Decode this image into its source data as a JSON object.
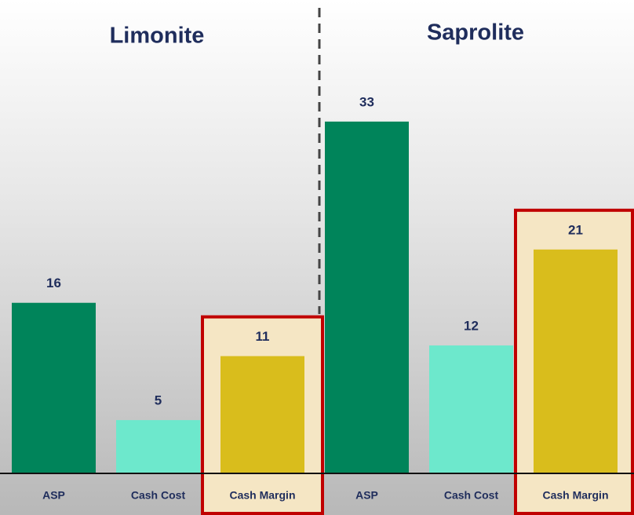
{
  "chart_data": [
    {
      "type": "bar",
      "title": "Limonite",
      "categories": [
        "ASP",
        "Cash Cost",
        "Cash Margin"
      ],
      "values": [
        16,
        5,
        11
      ],
      "colors": [
        "#00845a",
        "#6de8cc",
        "#d9bd1c"
      ]
    },
    {
      "type": "bar",
      "title": "Saprolite",
      "categories": [
        "ASP",
        "Cash Cost",
        "Cash Margin"
      ],
      "values": [
        33,
        12,
        21
      ],
      "colors": [
        "#00845a",
        "#6de8cc",
        "#d9bd1c"
      ]
    }
  ]
}
